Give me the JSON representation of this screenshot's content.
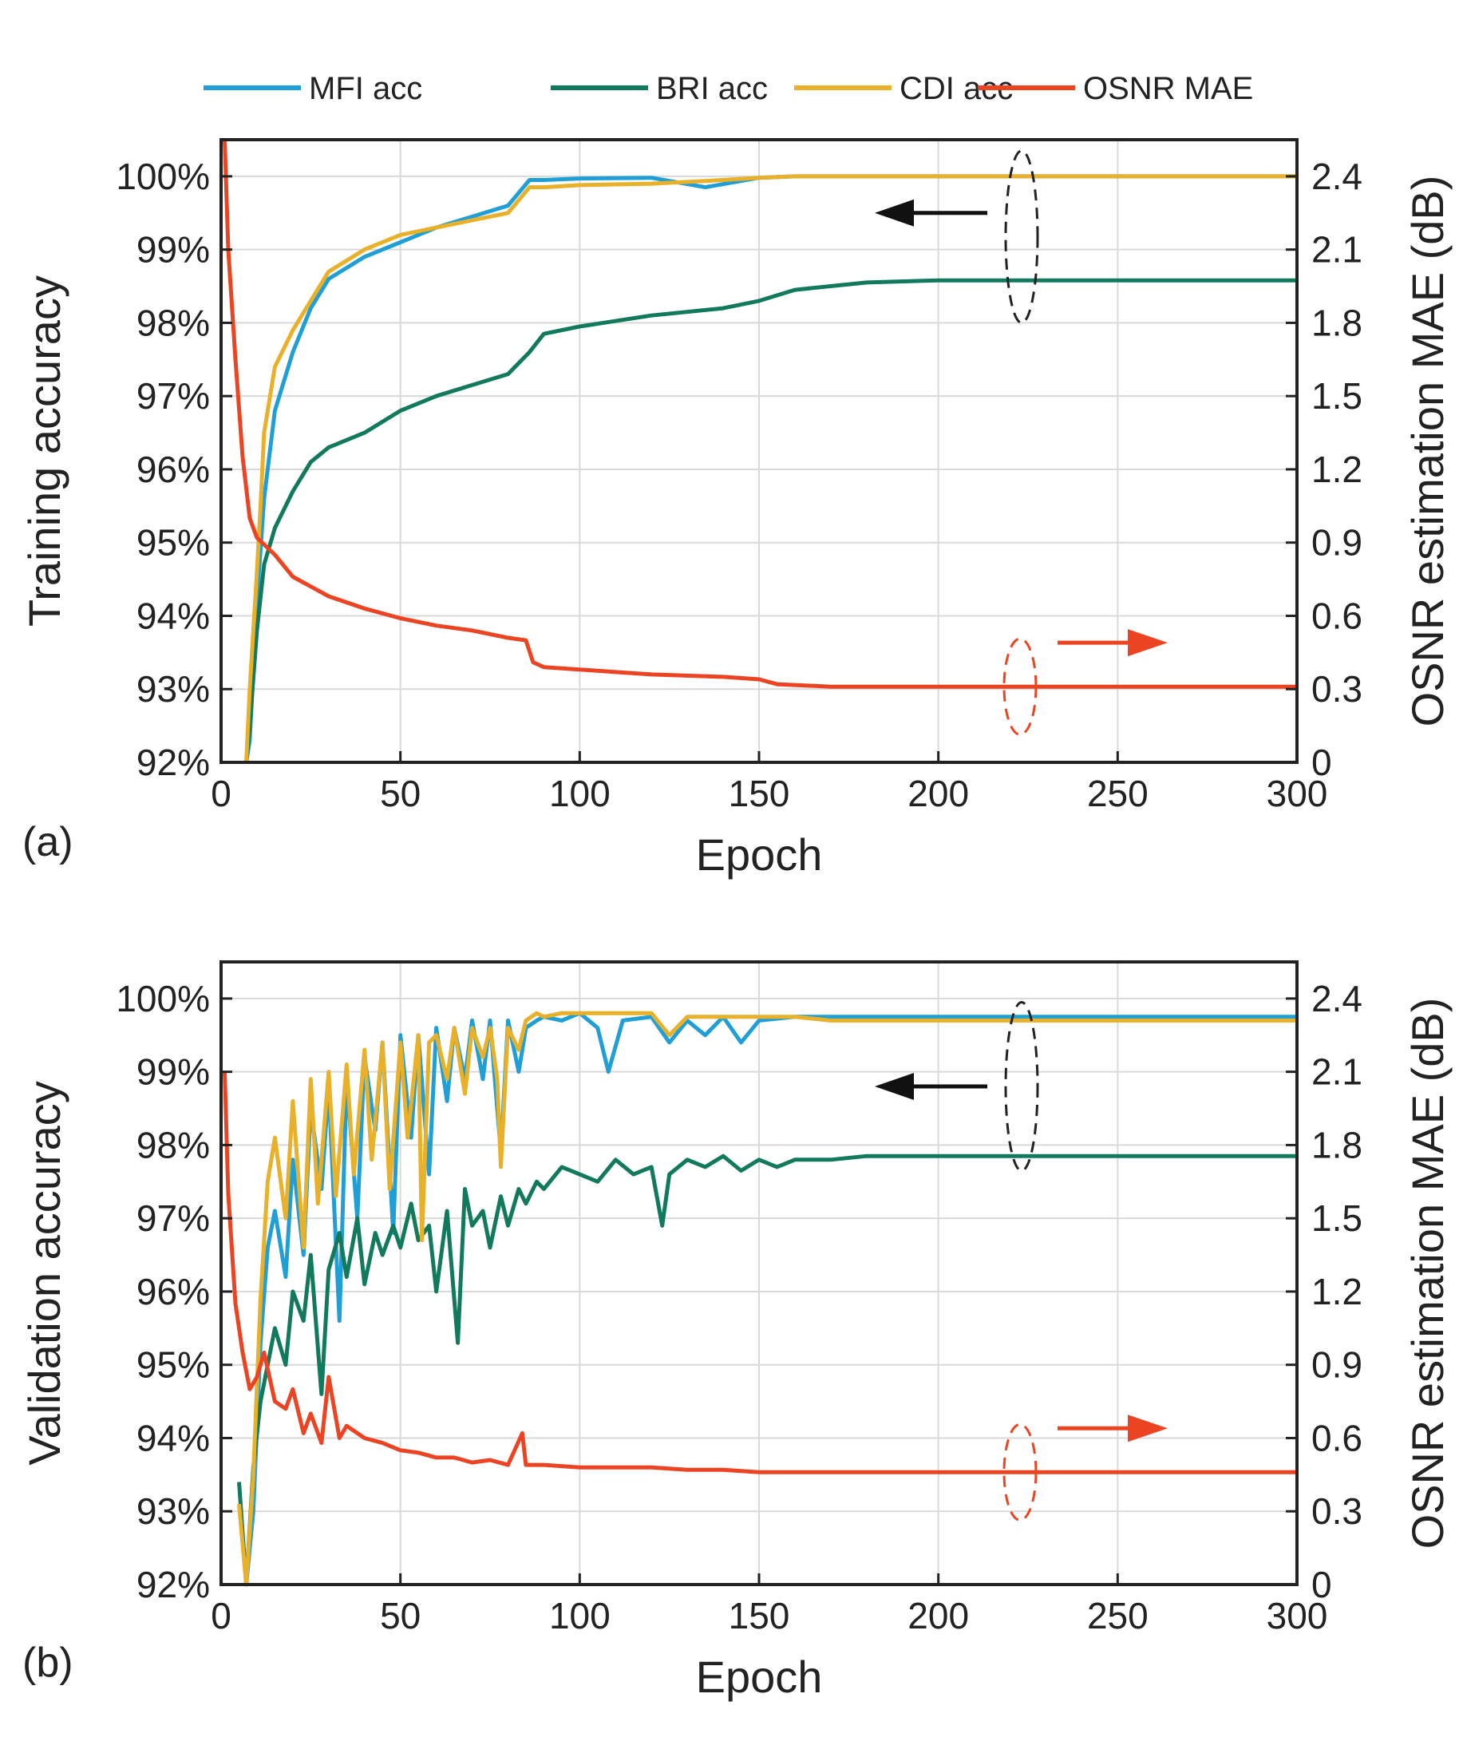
{
  "legend": [
    {
      "label": "MFI acc",
      "color": "#1f9fd6"
    },
    {
      "label": "BRI acc",
      "color": "#127a5c"
    },
    {
      "label": "CDI acc",
      "color": "#e9b02a"
    },
    {
      "label": "OSNR MAE",
      "color": "#ec4422"
    }
  ],
  "chart_data": [
    {
      "type": "line",
      "panel_label": "(a)",
      "xlabel": "Epoch",
      "ylabel": "Training accuracy",
      "y2label": "OSNR estimation MAE (dB)",
      "xlim": [
        0,
        300
      ],
      "ylim": [
        92,
        100.5
      ],
      "y2lim": [
        0,
        2.55
      ],
      "xticks": [
        "0",
        "50",
        "100",
        "150",
        "200",
        "250",
        "300"
      ],
      "yticks": [
        "92%",
        "93%",
        "94%",
        "95%",
        "96%",
        "97%",
        "98%",
        "99%",
        "100%"
      ],
      "y2ticks": [
        "0",
        "0.3",
        "0.6",
        "0.9",
        "1.2",
        "1.5",
        "1.8",
        "2.1",
        "2.4"
      ],
      "grid": true,
      "legend_position": "top",
      "series": [
        {
          "name": "MFI acc",
          "axis": "left",
          "color": "#1f9fd6",
          "x": [
            7,
            8,
            10,
            12,
            15,
            20,
            25,
            30,
            40,
            50,
            60,
            70,
            80,
            86,
            90,
            100,
            120,
            135,
            150,
            160,
            200,
            250,
            300
          ],
          "y": [
            92,
            92.3,
            94.2,
            95.6,
            96.8,
            97.6,
            98.2,
            98.6,
            98.9,
            99.1,
            99.3,
            99.45,
            99.6,
            99.95,
            99.95,
            99.97,
            99.98,
            99.85,
            99.98,
            100,
            100,
            100,
            100
          ]
        },
        {
          "name": "BRI acc",
          "axis": "left",
          "color": "#127a5c",
          "x": [
            7,
            8,
            10,
            12,
            15,
            20,
            25,
            30,
            40,
            50,
            60,
            70,
            80,
            86,
            90,
            100,
            120,
            140,
            150,
            160,
            180,
            200,
            250,
            300
          ],
          "y": [
            92,
            92.5,
            93.8,
            94.7,
            95.2,
            95.7,
            96.1,
            96.3,
            96.5,
            96.8,
            97.0,
            97.15,
            97.3,
            97.6,
            97.85,
            97.95,
            98.1,
            98.2,
            98.3,
            98.45,
            98.55,
            98.58,
            98.58,
            98.58
          ]
        },
        {
          "name": "CDI acc",
          "axis": "left",
          "color": "#e9b02a",
          "x": [
            7,
            8,
            10,
            11,
            12,
            15,
            20,
            25,
            30,
            40,
            50,
            60,
            70,
            80,
            86,
            90,
            100,
            120,
            140,
            150,
            160,
            200,
            250,
            300
          ],
          "y": [
            92,
            93.0,
            94.6,
            95.5,
            96.5,
            97.4,
            97.9,
            98.3,
            98.7,
            99.0,
            99.2,
            99.3,
            99.4,
            99.5,
            99.85,
            99.85,
            99.88,
            99.9,
            99.95,
            99.98,
            100,
            100,
            100,
            100
          ]
        },
        {
          "name": "OSNR MAE",
          "axis": "right",
          "color": "#ec4422",
          "x": [
            1,
            2,
            4,
            6,
            8,
            10,
            15,
            20,
            30,
            40,
            50,
            60,
            70,
            80,
            85,
            87,
            90,
            100,
            120,
            140,
            150,
            155,
            170,
            200,
            250,
            300
          ],
          "y": [
            2.55,
            2.1,
            1.65,
            1.25,
            1.0,
            0.92,
            0.85,
            0.76,
            0.68,
            0.63,
            0.59,
            0.56,
            0.54,
            0.51,
            0.5,
            0.41,
            0.39,
            0.38,
            0.36,
            0.35,
            0.34,
            0.32,
            0.31,
            0.31,
            0.31,
            0.31
          ]
        }
      ],
      "annotations": [
        "left-arrow (accuracy curves use left axis)",
        "right-arrow (MAE curve uses right axis)"
      ]
    },
    {
      "type": "line",
      "panel_label": "(b)",
      "xlabel": "Epoch",
      "ylabel": "Validation accuracy",
      "y2label": "OSNR estimation MAE (dB)",
      "xlim": [
        0,
        300
      ],
      "ylim": [
        92,
        100.5
      ],
      "y2lim": [
        0,
        2.55
      ],
      "xticks": [
        "0",
        "50",
        "100",
        "150",
        "200",
        "250",
        "300"
      ],
      "yticks": [
        "92%",
        "93%",
        "94%",
        "95%",
        "96%",
        "97%",
        "98%",
        "99%",
        "100%"
      ],
      "y2ticks": [
        "0",
        "0.3",
        "0.6",
        "0.9",
        "1.2",
        "1.5",
        "1.8",
        "2.1",
        "2.4"
      ],
      "grid": true,
      "series": [
        {
          "name": "MFI acc",
          "axis": "left",
          "color": "#1f9fd6",
          "x": [
            7,
            9,
            11,
            13,
            15,
            18,
            20,
            23,
            25,
            28,
            30,
            33,
            35,
            38,
            40,
            43,
            45,
            48,
            50,
            53,
            55,
            58,
            60,
            63,
            65,
            68,
            70,
            73,
            75,
            78,
            80,
            83,
            85,
            88,
            90,
            95,
            100,
            105,
            108,
            112,
            120,
            125,
            130,
            135,
            140,
            145,
            150,
            160,
            170,
            200,
            250,
            300
          ],
          "y": [
            92,
            93.0,
            95.3,
            96.6,
            97.1,
            96.2,
            97.8,
            96.5,
            98.5,
            97.4,
            98.8,
            95.6,
            98.9,
            97.0,
            99.2,
            98.2,
            99.4,
            96.8,
            99.5,
            98.1,
            99.5,
            97.6,
            99.6,
            98.6,
            99.6,
            98.9,
            99.7,
            98.9,
            99.7,
            97.9,
            99.7,
            99.0,
            99.6,
            99.7,
            99.75,
            99.7,
            99.8,
            99.6,
            99.0,
            99.7,
            99.75,
            99.4,
            99.7,
            99.5,
            99.75,
            99.4,
            99.7,
            99.75,
            99.75,
            99.75,
            99.75,
            99.75
          ]
        },
        {
          "name": "BRI acc",
          "axis": "left",
          "color": "#127a5c",
          "x": [
            5,
            7,
            9,
            11,
            13,
            15,
            18,
            20,
            23,
            25,
            28,
            30,
            33,
            35,
            38,
            40,
            43,
            45,
            48,
            50,
            53,
            55,
            58,
            60,
            63,
            66,
            68,
            70,
            73,
            75,
            78,
            80,
            83,
            85,
            88,
            90,
            95,
            100,
            105,
            110,
            115,
            120,
            123,
            125,
            130,
            135,
            140,
            145,
            150,
            155,
            160,
            170,
            180,
            200,
            210,
            250,
            300
          ],
          "y": [
            93.4,
            92,
            93.6,
            94.5,
            95.0,
            95.5,
            95.0,
            96.0,
            95.6,
            96.5,
            94.6,
            96.3,
            96.8,
            96.2,
            97.0,
            96.1,
            96.8,
            96.5,
            96.9,
            96.6,
            97.2,
            96.7,
            96.9,
            96.0,
            97.1,
            95.3,
            97.4,
            96.9,
            97.1,
            96.6,
            97.3,
            96.9,
            97.4,
            97.2,
            97.5,
            97.4,
            97.7,
            97.6,
            97.5,
            97.8,
            97.6,
            97.7,
            96.9,
            97.6,
            97.8,
            97.7,
            97.85,
            97.65,
            97.8,
            97.7,
            97.8,
            97.8,
            97.85,
            97.85,
            97.85,
            97.85,
            97.85
          ]
        },
        {
          "name": "CDI acc",
          "axis": "left",
          "color": "#e9b02a",
          "x": [
            5,
            7,
            9,
            11,
            13,
            15,
            18,
            20,
            23,
            25,
            27,
            30,
            32,
            35,
            37,
            40,
            42,
            45,
            47,
            50,
            52,
            55,
            56,
            58,
            60,
            63,
            65,
            68,
            70,
            73,
            75,
            77,
            78,
            80,
            83,
            85,
            88,
            90,
            95,
            100,
            110,
            120,
            125,
            130,
            140,
            150,
            160,
            170,
            200,
            250,
            300
          ],
          "y": [
            93.1,
            92,
            93.5,
            95.9,
            97.5,
            98.1,
            97.0,
            98.6,
            96.6,
            98.9,
            97.2,
            99.0,
            97.3,
            99.1,
            97.6,
            99.3,
            97.8,
            99.4,
            97.4,
            99.4,
            98.1,
            99.5,
            96.7,
            99.4,
            99.5,
            98.9,
            99.6,
            98.7,
            99.6,
            99.2,
            99.6,
            98.9,
            97.7,
            99.6,
            99.3,
            99.7,
            99.8,
            99.75,
            99.8,
            99.8,
            99.8,
            99.8,
            99.5,
            99.75,
            99.75,
            99.75,
            99.75,
            99.7,
            99.7,
            99.7,
            99.7
          ]
        },
        {
          "name": "OSNR MAE",
          "axis": "right",
          "color": "#ec4422",
          "x": [
            1,
            2,
            4,
            6,
            8,
            10,
            12,
            15,
            18,
            20,
            23,
            25,
            28,
            30,
            33,
            35,
            40,
            45,
            50,
            55,
            60,
            65,
            70,
            75,
            80,
            84,
            85,
            87,
            90,
            100,
            110,
            120,
            130,
            140,
            150,
            160,
            170,
            200,
            250,
            300
          ],
          "y": [
            2.1,
            1.6,
            1.15,
            0.95,
            0.8,
            0.85,
            0.95,
            0.75,
            0.72,
            0.8,
            0.62,
            0.7,
            0.58,
            0.85,
            0.6,
            0.65,
            0.6,
            0.58,
            0.55,
            0.54,
            0.52,
            0.52,
            0.5,
            0.51,
            0.49,
            0.62,
            0.49,
            0.49,
            0.49,
            0.48,
            0.48,
            0.48,
            0.47,
            0.47,
            0.46,
            0.46,
            0.46,
            0.46,
            0.46,
            0.46
          ]
        }
      ],
      "annotations": [
        "left-arrow (accuracy curves use left axis)",
        "right-arrow (MAE curve uses right axis)"
      ]
    }
  ]
}
